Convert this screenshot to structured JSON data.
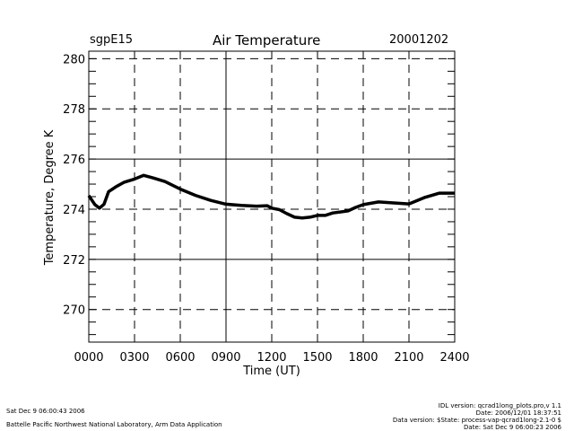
{
  "header": {
    "site": "sgpE15",
    "date": "20001202"
  },
  "footer": {
    "left_line1": "Sat Dec  9 06:00:43 2006",
    "left_line2": "Battelle Pacific Northwest National Laboratory, Arm Data Application",
    "right_line1": "IDL version: qcrad1long_plots.pro,v 1.1",
    "right_line2": "Date: 2006/12/01 18:37:51",
    "right_line3": "Data version: $State: process-vap-qcrad1long-2.1-0 $",
    "right_line4": "Date: Sat Dec  9 06:00:23 2006"
  },
  "colors": {
    "line": "#000000",
    "background": "#ffffff"
  },
  "chart_data": {
    "type": "line",
    "title": "Air Temperature",
    "xlabel": "Time (UT)",
    "ylabel": "Temperature, Degree K",
    "xlim": [
      0,
      24
    ],
    "ylim": [
      268.7,
      280.3
    ],
    "x_ticks": [
      0,
      3,
      6,
      9,
      12,
      15,
      18,
      21,
      24
    ],
    "x_tick_labels": [
      "0000",
      "0300",
      "0600",
      "0900",
      "1200",
      "1500",
      "1800",
      "2100",
      "2400"
    ],
    "y_ticks": [
      270,
      272,
      274,
      276,
      278,
      280
    ],
    "y_tick_labels": [
      "270",
      "272",
      "274",
      "276",
      "278",
      "280"
    ],
    "y_minor_step": 0.5,
    "grid": "dashed, solid at 0900 and 276/272",
    "series": [
      {
        "name": "Air Temperature",
        "x": [
          0.0,
          0.4,
          0.7,
          1.0,
          1.3,
          1.8,
          2.3,
          3.0,
          3.6,
          4.2,
          5.0,
          6.0,
          7.0,
          8.0,
          9.0,
          10.0,
          11.0,
          11.7,
          12.0,
          12.5,
          13.0,
          13.5,
          14.0,
          14.5,
          15.0,
          15.5,
          16.0,
          17.0,
          17.5,
          18.0,
          19.0,
          20.0,
          21.0,
          22.0,
          23.0,
          24.0
        ],
        "y": [
          274.54,
          274.18,
          274.04,
          274.2,
          274.7,
          274.9,
          275.07,
          275.2,
          275.35,
          275.25,
          275.1,
          274.8,
          274.55,
          274.35,
          274.2,
          274.15,
          274.12,
          274.14,
          274.04,
          273.98,
          273.82,
          273.68,
          273.65,
          273.68,
          273.75,
          273.75,
          273.85,
          273.93,
          274.07,
          274.18,
          274.29,
          274.25,
          274.21,
          274.46,
          274.64,
          274.64
        ]
      }
    ]
  }
}
